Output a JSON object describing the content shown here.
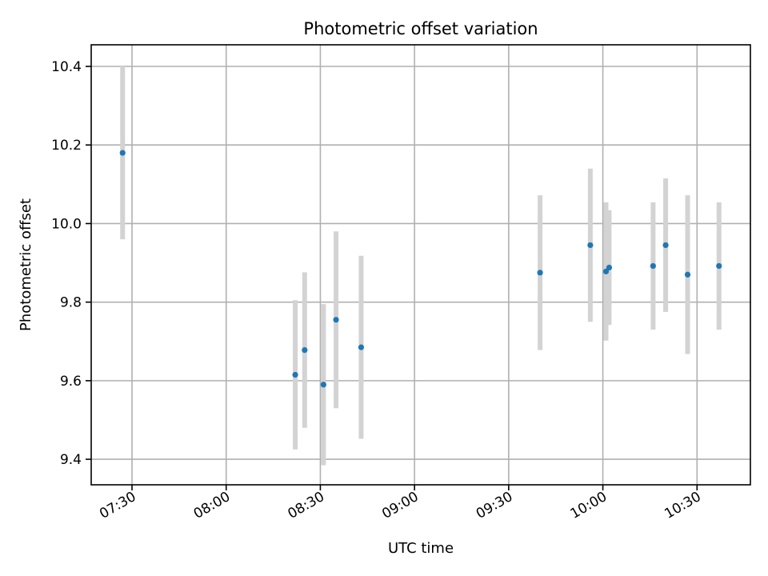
{
  "chart_data": {
    "type": "scatter",
    "title": "Photometric offset variation",
    "xlabel": "UTC time",
    "ylabel": "Photometric offset",
    "x_unit": "UTC time (HH:MM)",
    "xlim": [
      "07:17",
      "10:47"
    ],
    "ylim": [
      9.335,
      10.455
    ],
    "x_ticks": [
      "07:30",
      "08:00",
      "08:30",
      "09:00",
      "09:30",
      "10:00",
      "10:30"
    ],
    "y_ticks": [
      "9.4",
      "9.6",
      "9.8",
      "10.0",
      "10.2",
      "10.4"
    ],
    "grid": true,
    "series": [
      {
        "marker_color": "#1f77b4",
        "errorbar_color": "#d3d3d3",
        "points": [
          {
            "x": "07:27",
            "y": 10.18,
            "ylow": 9.96,
            "yhigh": 10.4
          },
          {
            "x": "08:22",
            "y": 9.615,
            "ylow": 9.425,
            "yhigh": 9.805
          },
          {
            "x": "08:25",
            "y": 9.678,
            "ylow": 9.48,
            "yhigh": 9.876
          },
          {
            "x": "08:31",
            "y": 9.59,
            "ylow": 9.385,
            "yhigh": 9.795
          },
          {
            "x": "08:35",
            "y": 9.755,
            "ylow": 9.53,
            "yhigh": 9.98
          },
          {
            "x": "08:43",
            "y": 9.685,
            "ylow": 9.452,
            "yhigh": 9.918
          },
          {
            "x": "09:40",
            "y": 9.875,
            "ylow": 9.678,
            "yhigh": 10.072
          },
          {
            "x": "09:56",
            "y": 9.945,
            "ylow": 9.75,
            "yhigh": 10.14
          },
          {
            "x": "10:01",
            "y": 9.878,
            "ylow": 9.702,
            "yhigh": 10.054
          },
          {
            "x": "10:02",
            "y": 9.888,
            "ylow": 9.742,
            "yhigh": 10.034
          },
          {
            "x": "10:16",
            "y": 9.892,
            "ylow": 9.73,
            "yhigh": 10.054
          },
          {
            "x": "10:20",
            "y": 9.945,
            "ylow": 9.775,
            "yhigh": 10.115
          },
          {
            "x": "10:27",
            "y": 9.87,
            "ylow": 9.668,
            "yhigh": 10.072
          },
          {
            "x": "10:37",
            "y": 9.892,
            "ylow": 9.73,
            "yhigh": 10.054
          }
        ]
      }
    ]
  }
}
